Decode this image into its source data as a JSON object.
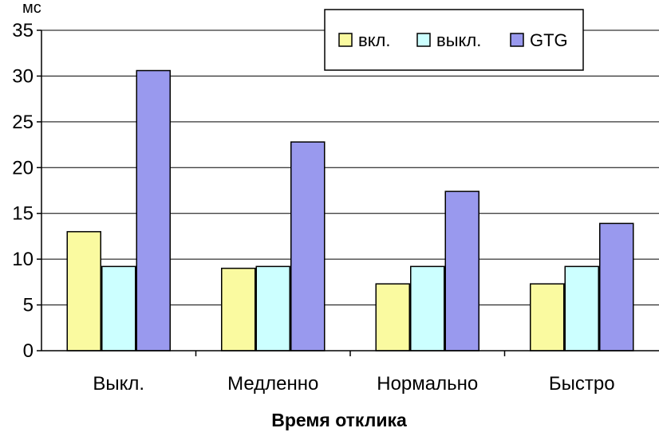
{
  "chart_data": {
    "type": "bar",
    "xlabel": "Время отклика",
    "ylabel": "мс",
    "ylim": [
      0,
      35
    ],
    "yticks": [
      0,
      5,
      10,
      15,
      20,
      25,
      30,
      35
    ],
    "grid": true,
    "legend_position": "top-right",
    "categories": [
      "Выкл.",
      "Медленно",
      "Нормально",
      "Быстро"
    ],
    "series": [
      {
        "name": "вкл.",
        "color": "#fafaa0",
        "values": [
          13.0,
          9.0,
          7.3,
          7.3
        ]
      },
      {
        "name": "выкл.",
        "color": "#ccffff",
        "values": [
          9.2,
          9.2,
          9.2,
          9.2
        ]
      },
      {
        "name": "GTG",
        "color": "#9999ee",
        "values": [
          30.6,
          22.8,
          17.4,
          13.9
        ]
      }
    ]
  }
}
